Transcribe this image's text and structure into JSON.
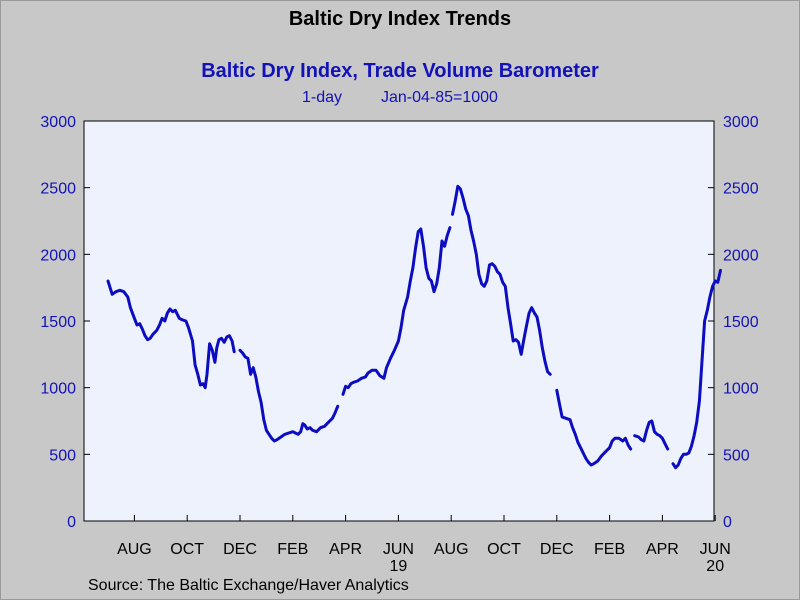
{
  "header": {
    "title": "Baltic Dry Index Trends"
  },
  "chart_data": {
    "type": "line",
    "title": "Baltic Dry Index, Trade Volume Barometer",
    "subtitle_left": "1-day",
    "subtitle_right": "Jan-04-85=1000",
    "xlabel": "",
    "ylabel": "",
    "ylim": [
      0,
      3000
    ],
    "yticks": [
      0,
      500,
      1000,
      1500,
      2000,
      2500,
      3000
    ],
    "x_ticks": [
      {
        "label": "AUG",
        "x": 1.0,
        "year": ""
      },
      {
        "label": "OCT",
        "x": 3.0,
        "year": ""
      },
      {
        "label": "DEC",
        "x": 5.0,
        "year": ""
      },
      {
        "label": "FEB",
        "x": 7.0,
        "year": ""
      },
      {
        "label": "APR",
        "x": 9.0,
        "year": ""
      },
      {
        "label": "JUN",
        "x": 11.0,
        "year": "19"
      },
      {
        "label": "AUG",
        "x": 13.0,
        "year": ""
      },
      {
        "label": "OCT",
        "x": 15.0,
        "year": ""
      },
      {
        "label": "DEC",
        "x": 17.0,
        "year": ""
      },
      {
        "label": "FEB",
        "x": 19.0,
        "year": ""
      },
      {
        "label": "APR",
        "x": 21.0,
        "year": ""
      },
      {
        "label": "JUN",
        "x": 23.0,
        "year": "20"
      }
    ],
    "series_color": "#0c0cc0",
    "plot_background": "#eef2fd",
    "grid": false,
    "series": [
      {
        "name": "",
        "segments": [
          [
            [
              0.0,
              1800
            ],
            [
              0.08,
              1750
            ],
            [
              0.16,
              1700
            ],
            [
              0.3,
              1720
            ],
            [
              0.45,
              1730
            ],
            [
              0.6,
              1720
            ],
            [
              0.75,
              1680
            ],
            [
              0.85,
              1600
            ],
            [
              1.0,
              1520
            ],
            [
              1.1,
              1470
            ],
            [
              1.2,
              1480
            ],
            [
              1.3,
              1440
            ],
            [
              1.4,
              1390
            ],
            [
              1.5,
              1360
            ],
            [
              1.6,
              1370
            ],
            [
              1.7,
              1400
            ],
            [
              1.85,
              1430
            ],
            [
              1.95,
              1470
            ],
            [
              2.05,
              1520
            ],
            [
              2.15,
              1500
            ],
            [
              2.25,
              1560
            ],
            [
              2.35,
              1590
            ],
            [
              2.45,
              1570
            ],
            [
              2.55,
              1580
            ],
            [
              2.7,
              1520
            ],
            [
              2.8,
              1510
            ],
            [
              2.95,
              1500
            ],
            [
              3.05,
              1450
            ],
            [
              3.2,
              1350
            ],
            [
              3.3,
              1170
            ],
            [
              3.4,
              1100
            ],
            [
              3.5,
              1020
            ],
            [
              3.6,
              1030
            ],
            [
              3.68,
              1000
            ],
            [
              3.75,
              1100
            ],
            [
              3.85,
              1330
            ],
            [
              3.95,
              1280
            ],
            [
              4.05,
              1190
            ],
            [
              4.12,
              1300
            ],
            [
              4.2,
              1360
            ],
            [
              4.3,
              1370
            ],
            [
              4.4,
              1340
            ],
            [
              4.5,
              1380
            ],
            [
              4.6,
              1390
            ],
            [
              4.7,
              1350
            ],
            [
              4.78,
              1270
            ]
          ],
          [
            [
              5.0,
              1280
            ],
            [
              5.1,
              1260
            ],
            [
              5.2,
              1230
            ],
            [
              5.3,
              1220
            ],
            [
              5.4,
              1100
            ],
            [
              5.5,
              1150
            ],
            [
              5.6,
              1080
            ],
            [
              5.7,
              970
            ],
            [
              5.8,
              890
            ],
            [
              5.9,
              760
            ],
            [
              6.0,
              680
            ],
            [
              6.1,
              650
            ],
            [
              6.2,
              620
            ],
            [
              6.3,
              600
            ],
            [
              6.4,
              610
            ],
            [
              6.55,
              630
            ],
            [
              6.7,
              650
            ],
            [
              6.85,
              660
            ],
            [
              7.0,
              670
            ],
            [
              7.1,
              660
            ],
            [
              7.2,
              650
            ],
            [
              7.3,
              670
            ],
            [
              7.38,
              730
            ],
            [
              7.45,
              720
            ],
            [
              7.55,
              690
            ],
            [
              7.65,
              700
            ],
            [
              7.75,
              680
            ],
            [
              7.9,
              670
            ],
            [
              8.05,
              700
            ],
            [
              8.2,
              710
            ],
            [
              8.35,
              740
            ],
            [
              8.5,
              770
            ],
            [
              8.6,
              810
            ],
            [
              8.7,
              860
            ]
          ],
          [
            [
              8.9,
              950
            ],
            [
              9.0,
              1010
            ],
            [
              9.1,
              1000
            ],
            [
              9.2,
              1030
            ],
            [
              9.3,
              1040
            ],
            [
              9.45,
              1050
            ],
            [
              9.6,
              1070
            ],
            [
              9.75,
              1080
            ],
            [
              9.85,
              1110
            ],
            [
              10.0,
              1130
            ],
            [
              10.15,
              1130
            ],
            [
              10.3,
              1090
            ],
            [
              10.45,
              1070
            ],
            [
              10.55,
              1150
            ],
            [
              10.7,
              1220
            ],
            [
              10.85,
              1280
            ],
            [
              11.0,
              1350
            ],
            [
              11.1,
              1450
            ],
            [
              11.2,
              1580
            ],
            [
              11.35,
              1680
            ],
            [
              11.45,
              1800
            ],
            [
              11.55,
              1900
            ],
            [
              11.65,
              2050
            ],
            [
              11.75,
              2170
            ],
            [
              11.85,
              2190
            ],
            [
              11.95,
              2060
            ],
            [
              12.05,
              1900
            ],
            [
              12.15,
              1820
            ],
            [
              12.25,
              1800
            ],
            [
              12.35,
              1720
            ],
            [
              12.45,
              1780
            ],
            [
              12.55,
              1900
            ],
            [
              12.65,
              2100
            ],
            [
              12.75,
              2060
            ],
            [
              12.85,
              2140
            ],
            [
              12.95,
              2200
            ]
          ],
          [
            [
              13.05,
              2300
            ],
            [
              13.15,
              2400
            ],
            [
              13.25,
              2510
            ],
            [
              13.35,
              2490
            ],
            [
              13.45,
              2420
            ],
            [
              13.55,
              2340
            ],
            [
              13.65,
              2290
            ],
            [
              13.75,
              2180
            ],
            [
              13.85,
              2100
            ],
            [
              13.95,
              2000
            ],
            [
              14.05,
              1850
            ],
            [
              14.15,
              1780
            ],
            [
              14.25,
              1760
            ],
            [
              14.35,
              1800
            ],
            [
              14.45,
              1920
            ],
            [
              14.55,
              1930
            ],
            [
              14.65,
              1910
            ],
            [
              14.75,
              1870
            ],
            [
              14.85,
              1850
            ],
            [
              14.95,
              1790
            ],
            [
              15.05,
              1760
            ],
            [
              15.15,
              1600
            ],
            [
              15.25,
              1480
            ],
            [
              15.35,
              1350
            ],
            [
              15.45,
              1360
            ],
            [
              15.55,
              1340
            ],
            [
              15.65,
              1250
            ],
            [
              15.75,
              1360
            ],
            [
              15.85,
              1460
            ],
            [
              15.95,
              1560
            ],
            [
              16.05,
              1600
            ],
            [
              16.15,
              1560
            ],
            [
              16.25,
              1530
            ],
            [
              16.35,
              1430
            ],
            [
              16.45,
              1300
            ],
            [
              16.55,
              1200
            ],
            [
              16.65,
              1120
            ],
            [
              16.75,
              1100
            ]
          ],
          [
            [
              17.0,
              980
            ],
            [
              17.1,
              880
            ],
            [
              17.2,
              780
            ],
            [
              17.35,
              770
            ],
            [
              17.5,
              760
            ],
            [
              17.6,
              700
            ],
            [
              17.7,
              650
            ],
            [
              17.8,
              590
            ],
            [
              17.9,
              550
            ],
            [
              18.0,
              510
            ],
            [
              18.1,
              470
            ],
            [
              18.2,
              440
            ],
            [
              18.3,
              420
            ],
            [
              18.4,
              430
            ],
            [
              18.55,
              450
            ],
            [
              18.7,
              490
            ],
            [
              18.85,
              520
            ],
            [
              19.0,
              550
            ],
            [
              19.1,
              600
            ],
            [
              19.2,
              620
            ],
            [
              19.35,
              620
            ],
            [
              19.5,
              600
            ],
            [
              19.6,
              620
            ],
            [
              19.7,
              570
            ],
            [
              19.8,
              540
            ]
          ],
          [
            [
              19.95,
              640
            ],
            [
              20.1,
              630
            ],
            [
              20.2,
              610
            ],
            [
              20.3,
              600
            ],
            [
              20.4,
              680
            ],
            [
              20.5,
              740
            ],
            [
              20.6,
              750
            ],
            [
              20.7,
              670
            ],
            [
              20.8,
              650
            ],
            [
              20.9,
              640
            ],
            [
              21.0,
              620
            ],
            [
              21.1,
              580
            ],
            [
              21.2,
              540
            ]
          ],
          [
            [
              21.4,
              430
            ],
            [
              21.5,
              400
            ],
            [
              21.6,
              420
            ],
            [
              21.7,
              470
            ],
            [
              21.8,
              500
            ],
            [
              21.9,
              500
            ],
            [
              22.0,
              510
            ],
            [
              22.1,
              560
            ],
            [
              22.2,
              640
            ],
            [
              22.3,
              740
            ],
            [
              22.4,
              900
            ],
            [
              22.5,
              1200
            ],
            [
              22.6,
              1500
            ],
            [
              22.7,
              1580
            ],
            [
              22.8,
              1680
            ],
            [
              22.9,
              1760
            ],
            [
              23.0,
              1800
            ],
            [
              23.1,
              1790
            ],
            [
              23.2,
              1880
            ]
          ]
        ]
      }
    ]
  },
  "footer": {
    "source": "Source:  The Baltic Exchange/Haver Analytics"
  }
}
